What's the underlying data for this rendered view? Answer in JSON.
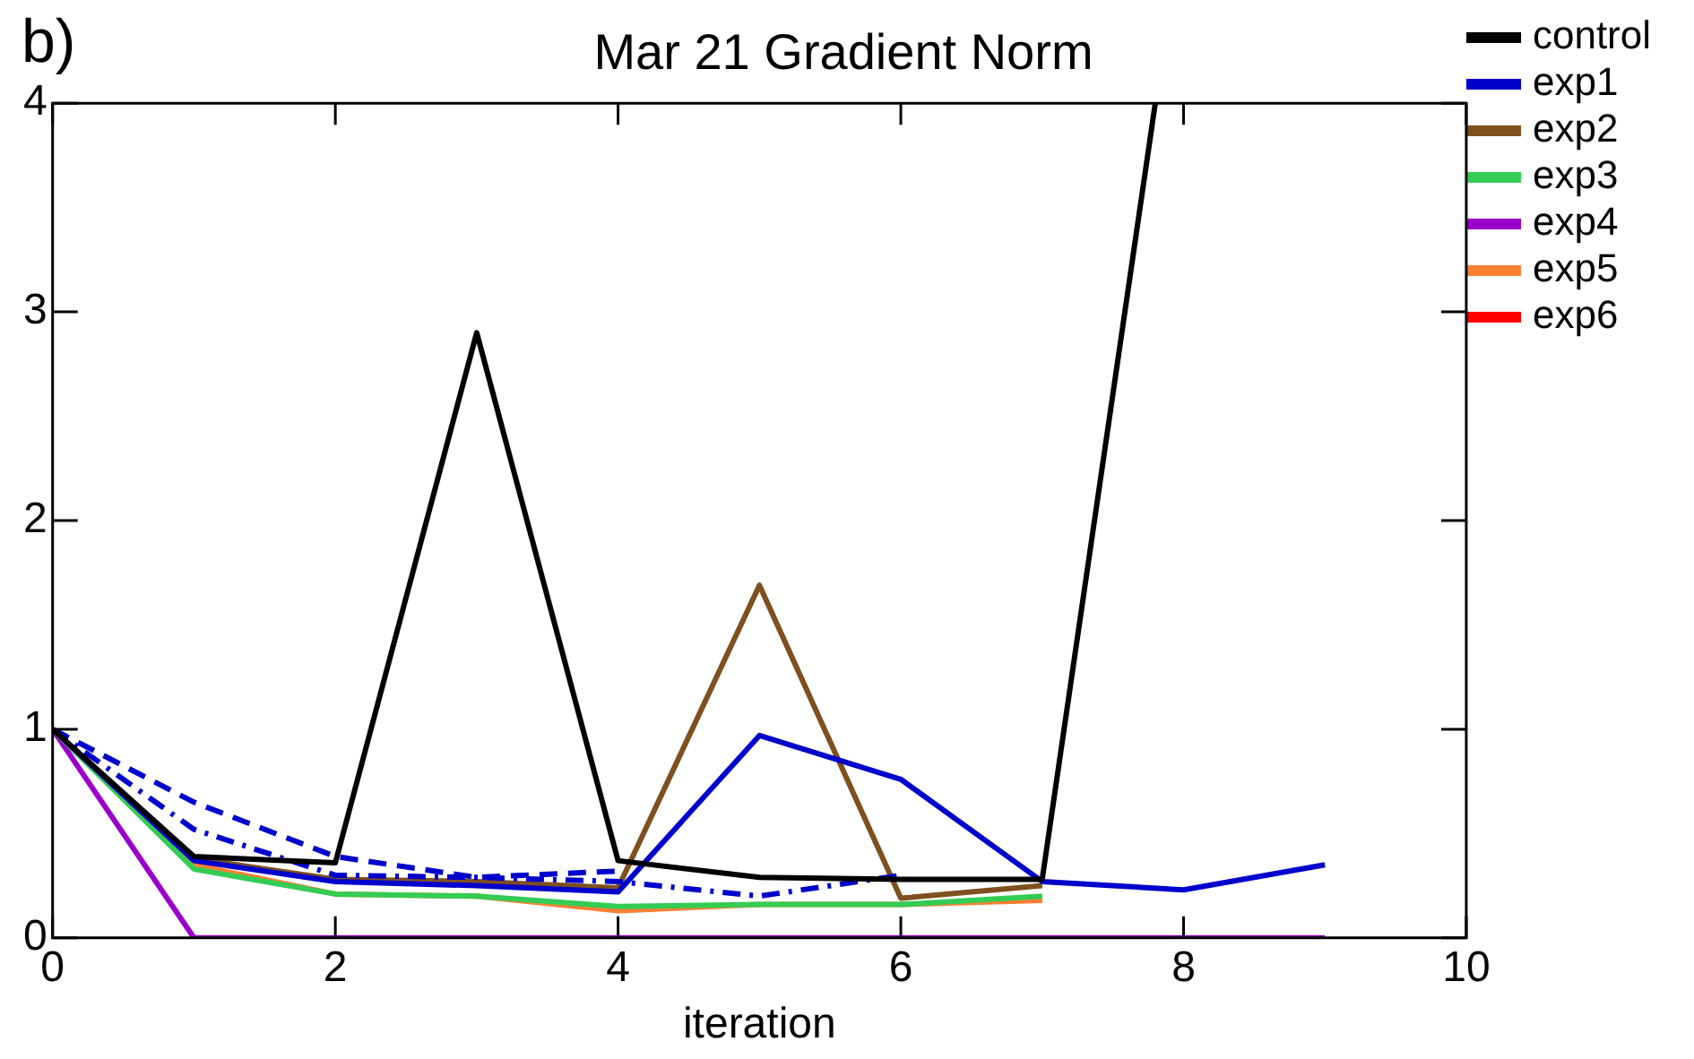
{
  "chart_data": {
    "type": "line",
    "title": "Mar 21 Gradient Norm",
    "xlabel": "iteration",
    "annotations": [
      "b)"
    ],
    "x": [
      0,
      1,
      2,
      3,
      4,
      5,
      6,
      7,
      8,
      9
    ],
    "xlim": [
      0,
      10
    ],
    "xticks": [
      0,
      2,
      4,
      6,
      8,
      10
    ],
    "ylim": [
      0,
      4
    ],
    "yticks": [
      0,
      1,
      2,
      3,
      4
    ],
    "grid": false,
    "legend": "right",
    "marker": "none",
    "line_style": "solid",
    "series": [
      {
        "name": "control",
        "color": "#000000",
        "x": [
          0,
          1,
          2,
          3,
          4,
          5,
          6,
          7,
          7.8
        ],
        "values": [
          1,
          0.39,
          0.36,
          2.9,
          0.37,
          0.29,
          0.28,
          0.28,
          4
        ]
      },
      {
        "name": "exp1",
        "color": "#0000cc",
        "values": [
          1,
          0.37,
          0.27,
          0.25,
          0.22,
          0.97,
          0.76,
          0.27,
          0.23,
          0.35
        ]
      },
      {
        "color": "#0000cc",
        "line_style": "dashed",
        "x": [
          0,
          1,
          2,
          3,
          4
        ],
        "values": [
          1,
          0.65,
          0.39,
          0.29,
          0.32
        ]
      },
      {
        "color": "#0000cc",
        "line_style": "dotted",
        "x": [
          0,
          1,
          2,
          3,
          4,
          5,
          6
        ],
        "values": [
          1,
          0.52,
          0.3,
          0.29,
          0.27,
          0.2,
          0.3
        ]
      },
      {
        "name": "exp2",
        "color": "#7f4f1f",
        "x": [
          0,
          1,
          2,
          3,
          4,
          5,
          6,
          7
        ],
        "values": [
          1,
          0.38,
          0.28,
          0.27,
          0.24,
          1.69,
          0.19,
          0.25
        ]
      },
      {
        "name": "exp3",
        "color": "#33cc55",
        "x": [
          0,
          1,
          2,
          3,
          4,
          5,
          6,
          7
        ],
        "values": [
          1,
          0.33,
          0.21,
          0.2,
          0.15,
          0.16,
          0.16,
          0.2
        ]
      },
      {
        "name": "exp4",
        "color": "#9900cc",
        "values": [
          1,
          0,
          0,
          0,
          0,
          0,
          0,
          0,
          0,
          0
        ]
      },
      {
        "name": "exp5",
        "color": "#ff8033",
        "x": [
          0,
          1,
          2,
          3,
          4,
          5,
          6,
          7
        ],
        "values": [
          1,
          0.35,
          0.21,
          0.2,
          0.13,
          0.16,
          0.16,
          0.18
        ]
      },
      {
        "name": "exp6",
        "color": "#ff0000",
        "values": [
          null,
          null,
          null,
          null,
          null,
          null,
          null,
          null,
          null,
          null
        ]
      }
    ]
  }
}
